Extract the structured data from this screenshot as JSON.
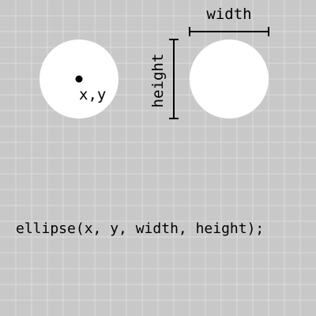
{
  "colors": {
    "background": "#c8c8c8",
    "grid_line": "#dcdcdc",
    "circle_fill": "#ffffff",
    "ink": "#000000"
  },
  "labels": {
    "center_point": "x,y",
    "width": "width",
    "height": "height"
  },
  "code": {
    "statement": "ellipse(x, y, width, height);"
  }
}
